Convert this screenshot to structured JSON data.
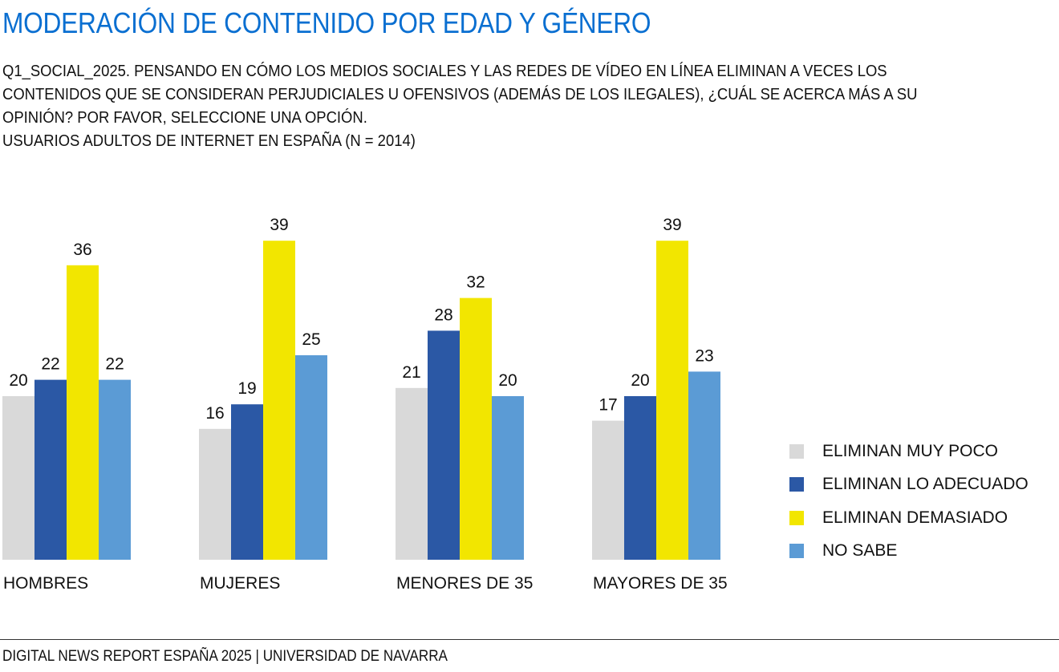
{
  "title": "MODERACIÓN DE CONTENIDO POR EDAD Y GÉNERO",
  "subtitle": {
    "line1": "Q1_SOCIAL_2025. PENSANDO EN CÓMO LOS MEDIOS SOCIALES Y LAS REDES DE VÍDEO EN LÍNEA ELIMINAN A VECES LOS",
    "line2": "CONTENIDOS QUE SE CONSIDERAN PERJUDICIALES U OFENSIVOS (ADEMÁS DE LOS ILEGALES), ¿CUÁL SE ACERCA MÁS A SU",
    "line3": "OPINIÓN? POR FAVOR, SELECCIONE UNA OPCIÓN.",
    "line4": "USUARIOS ADULTOS DE INTERNET EN ESPAÑA (N = 2014)"
  },
  "footer": "DIGITAL NEWS REPORT ESPAÑA 2025 | UNIVERSIDAD DE NAVARRA",
  "chart_data": {
    "type": "bar",
    "title": "MODERACIÓN DE CONTENIDO POR EDAD Y GÉNERO",
    "xlabel": "",
    "ylabel": "",
    "grid": false,
    "legend_position": "right",
    "categories": [
      "HOMBRES",
      "MUJERES",
      "MENORES DE 35",
      "MAYORES DE 35"
    ],
    "series": [
      {
        "name": "ELIMINAN MUY POCO",
        "color": "#d9d9d9",
        "values": [
          20,
          16,
          21,
          17
        ]
      },
      {
        "name": "ELIMINAN LO ADECUADO",
        "color": "#2b58a5",
        "values": [
          22,
          19,
          28,
          20
        ]
      },
      {
        "name": "ELIMINAN DEMASIADO",
        "color": "#f2e600",
        "values": [
          36,
          39,
          32,
          39
        ]
      },
      {
        "name": "NO SABE",
        "color": "#5b9bd5",
        "values": [
          22,
          25,
          20,
          23
        ]
      }
    ]
  }
}
